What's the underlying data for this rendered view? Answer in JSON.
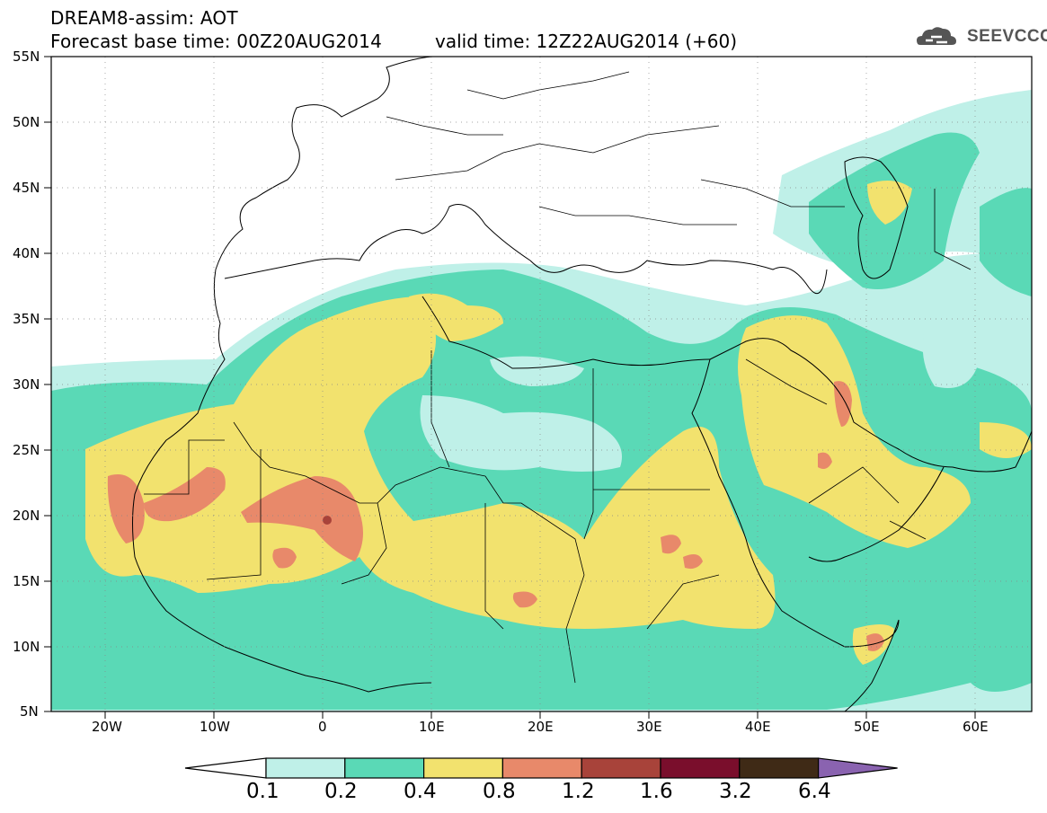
{
  "header": {
    "title_line1": "DREAM8-assim: AOT",
    "title_line2_base": "Forecast base time: 00Z20AUG2014",
    "title_line2_valid": "valid time: 12Z22AUG2014 (+60)"
  },
  "logo": {
    "text": "SEEVCCC",
    "icon": "cloud-icon"
  },
  "axes": {
    "lat_labels": [
      "55N",
      "50N",
      "45N",
      "40N",
      "35N",
      "30N",
      "25N",
      "20N",
      "15N",
      "10N",
      "5N"
    ],
    "lon_labels": [
      "20W",
      "10W",
      "0",
      "10E",
      "20E",
      "30E",
      "40E",
      "50E",
      "60E"
    ]
  },
  "colorbar": {
    "labels": [
      "0.1",
      "0.2",
      "0.4",
      "0.8",
      "1.2",
      "1.6",
      "3.2",
      "6.4"
    ],
    "colors": [
      "#ffffff",
      "#bff0e8",
      "#5ad9b6",
      "#f2e26e",
      "#e8896a",
      "#a8433a",
      "#7a0e2c",
      "#3f2a16",
      "#8a63b0"
    ]
  }
}
